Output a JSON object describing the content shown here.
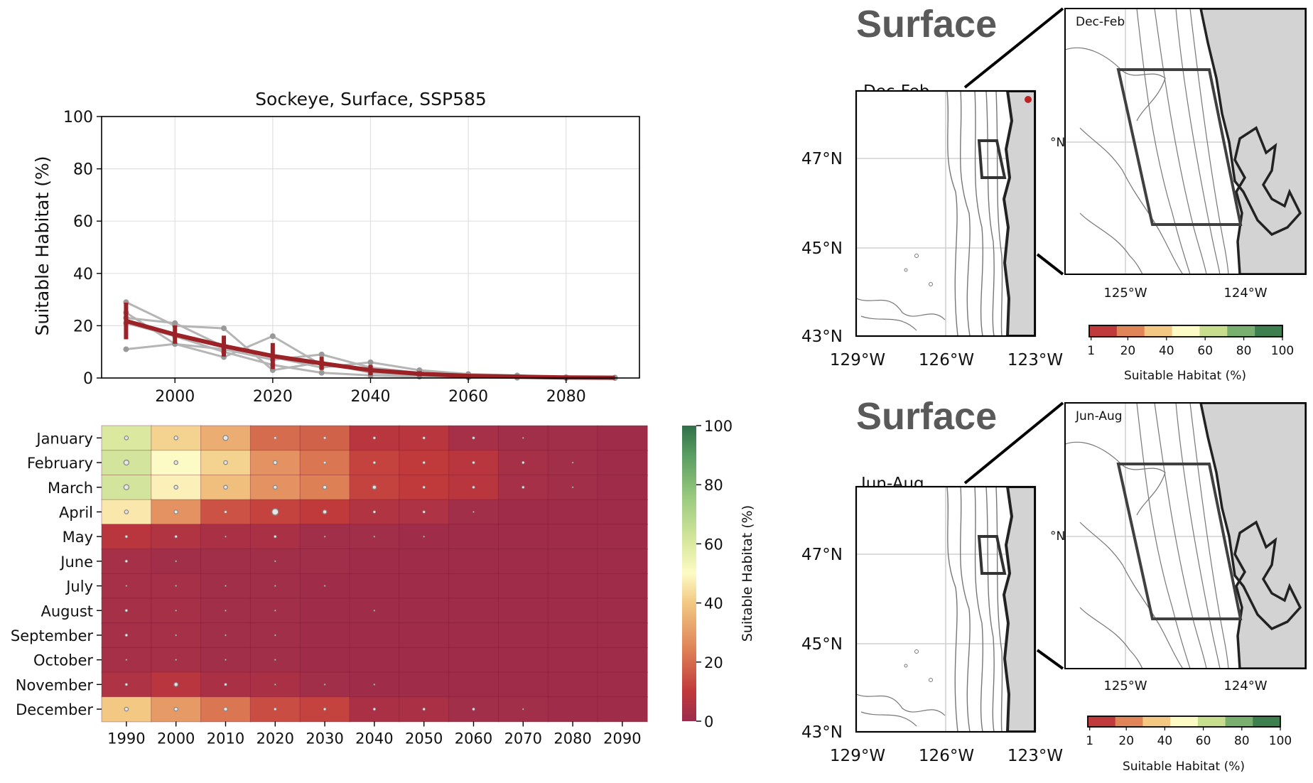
{
  "chart_data": [
    {
      "type": "line",
      "title": "Sockeye, Surface, SSP585",
      "ylabel": "Suitable Habitat (%)",
      "xlabel": "",
      "ylim": [
        0,
        100
      ],
      "xlim": [
        1985,
        2095
      ],
      "yticks": [
        "0",
        "20",
        "40",
        "60",
        "80",
        "100"
      ],
      "xticks": [
        "2000",
        "2020",
        "2040",
        "2060",
        "2080"
      ],
      "grid": true,
      "x": [
        1990,
        2000,
        2010,
        2020,
        2030,
        2040,
        2050,
        2060,
        2070,
        2080,
        2090
      ],
      "ensemble_members": [
        {
          "values": [
            29,
            20,
            19,
            3,
            6,
            2,
            1,
            0.5,
            0.2,
            0.1,
            0.1
          ]
        },
        {
          "values": [
            25,
            13,
            8,
            16,
            5,
            3,
            2,
            1,
            0.5,
            0.2,
            0.1
          ]
        },
        {
          "values": [
            23,
            21,
            12,
            8,
            4,
            6,
            3,
            1.5,
            1,
            0.3,
            0.1
          ]
        },
        {
          "values": [
            11,
            13,
            11,
            7,
            9,
            4,
            2,
            1,
            0.5,
            0.2,
            0.1
          ]
        },
        {
          "values": [
            21,
            16,
            10,
            5,
            2,
            1,
            0.5,
            0.2,
            0.1,
            0,
            0
          ]
        }
      ],
      "series": [
        {
          "values": [
            21.8,
            16.6,
            12.2,
            8.4,
            5.6,
            3.0,
            1.6,
            0.8,
            0.5,
            0.2,
            0.1
          ],
          "errors": [
            7,
            3.5,
            4,
            5,
            2.5,
            2,
            1,
            0.5,
            0.3,
            0.1,
            0.1
          ]
        }
      ],
      "colors": {
        "mean": "#9b2226",
        "members": "#b5b5b5",
        "grid": "#e0e0e0"
      }
    },
    {
      "type": "heatmap",
      "rows": [
        "January",
        "February",
        "March",
        "April",
        "May",
        "June",
        "July",
        "August",
        "September",
        "October",
        "November",
        "December"
      ],
      "columns": [
        "1990",
        "2000",
        "2010",
        "2020",
        "2030",
        "2040",
        "2050",
        "2060",
        "2070",
        "2080",
        "2090"
      ],
      "values": [
        [
          60,
          42,
          34,
          20,
          18,
          8,
          8,
          3,
          2,
          2,
          1
        ],
        [
          62,
          50,
          42,
          28,
          22,
          12,
          10,
          8,
          3,
          2,
          1
        ],
        [
          62,
          48,
          38,
          28,
          24,
          12,
          10,
          8,
          3,
          2,
          1
        ],
        [
          46,
          28,
          15,
          12,
          10,
          6,
          5,
          2,
          1,
          1,
          1
        ],
        [
          8,
          6,
          4,
          4,
          2,
          2,
          1,
          1,
          1,
          1,
          1
        ],
        [
          3,
          2,
          2,
          2,
          2,
          1,
          1,
          1,
          1,
          1,
          1
        ],
        [
          3,
          3,
          2,
          2,
          1,
          1,
          1,
          1,
          1,
          1,
          1
        ],
        [
          3,
          3,
          2,
          2,
          1,
          1,
          1,
          1,
          1,
          1,
          1
        ],
        [
          3,
          3,
          2,
          2,
          1,
          1,
          1,
          1,
          1,
          1,
          1
        ],
        [
          3,
          3,
          2,
          2,
          1,
          1,
          1,
          1,
          1,
          1,
          1
        ],
        [
          5,
          8,
          4,
          4,
          2,
          1,
          1,
          1,
          1,
          1,
          1
        ],
        [
          40,
          30,
          22,
          14,
          12,
          4,
          4,
          2,
          2,
          1,
          1
        ]
      ],
      "uncertainty": [
        [
          3,
          3,
          4,
          2,
          2,
          2,
          2,
          2,
          1,
          0,
          0
        ],
        [
          4,
          3,
          3,
          3,
          2,
          2,
          2,
          2,
          2,
          1,
          0
        ],
        [
          4,
          3,
          3,
          3,
          3,
          3,
          2,
          2,
          2,
          1,
          0
        ],
        [
          3,
          3,
          2,
          5,
          3,
          2,
          2,
          1,
          0,
          0,
          0
        ],
        [
          2,
          2,
          1,
          2,
          1,
          1,
          1,
          0,
          0,
          0,
          0
        ],
        [
          2,
          1,
          0,
          1,
          0,
          0,
          0,
          0,
          0,
          0,
          0
        ],
        [
          1,
          1,
          1,
          1,
          1,
          0,
          0,
          0,
          0,
          0,
          0
        ],
        [
          2,
          1,
          1,
          1,
          0,
          1,
          0,
          0,
          0,
          0,
          0
        ],
        [
          2,
          1,
          1,
          1,
          0,
          0,
          0,
          0,
          0,
          0,
          0
        ],
        [
          1,
          1,
          1,
          1,
          0,
          0,
          0,
          0,
          0,
          0,
          0
        ],
        [
          2,
          3,
          2,
          1,
          1,
          1,
          0,
          0,
          0,
          0,
          0
        ],
        [
          3,
          3,
          3,
          2,
          2,
          2,
          2,
          2,
          1,
          0,
          0
        ]
      ],
      "colorbar": {
        "label": "Suitable Habitat (%)",
        "range": [
          0,
          100
        ],
        "ticks": [
          "0",
          "20",
          "40",
          "60",
          "80",
          "100"
        ]
      }
    }
  ],
  "maps": [
    {
      "heading": "Surface",
      "season": "Dec-Feb",
      "lat_labels": [
        "47°N",
        "45°N",
        "43°N"
      ],
      "lon_labels": [
        "129°W",
        "126°W",
        "123°W"
      ],
      "inset_lon_labels": [
        "125°W",
        "124°W"
      ],
      "inset_lat_label": "°N",
      "colorbar_ticks": [
        "1",
        "20",
        "40",
        "60",
        "80",
        "100"
      ],
      "colorbar_label": "Suitable Habitat (%)"
    },
    {
      "heading": "Surface",
      "season": "Jun-Aug",
      "lat_labels": [
        "47°N",
        "45°N",
        "43°N"
      ],
      "lon_labels": [
        "129°W",
        "126°W",
        "123°W"
      ],
      "inset_lon_labels": [
        "125°W",
        "124°W"
      ],
      "inset_lat_label": "°N",
      "colorbar_ticks": [
        "1",
        "20",
        "40",
        "60",
        "80",
        "100"
      ],
      "colorbar_label": "Suitable Habitat (%)"
    }
  ],
  "colors": {
    "discrete_scale": [
      "#c0393b",
      "#e08558",
      "#f2c883",
      "#fdfbc5",
      "#c6de8e",
      "#79b06f",
      "#3d7f4e"
    ],
    "land": "#d3d3d3",
    "box": "#404040"
  }
}
